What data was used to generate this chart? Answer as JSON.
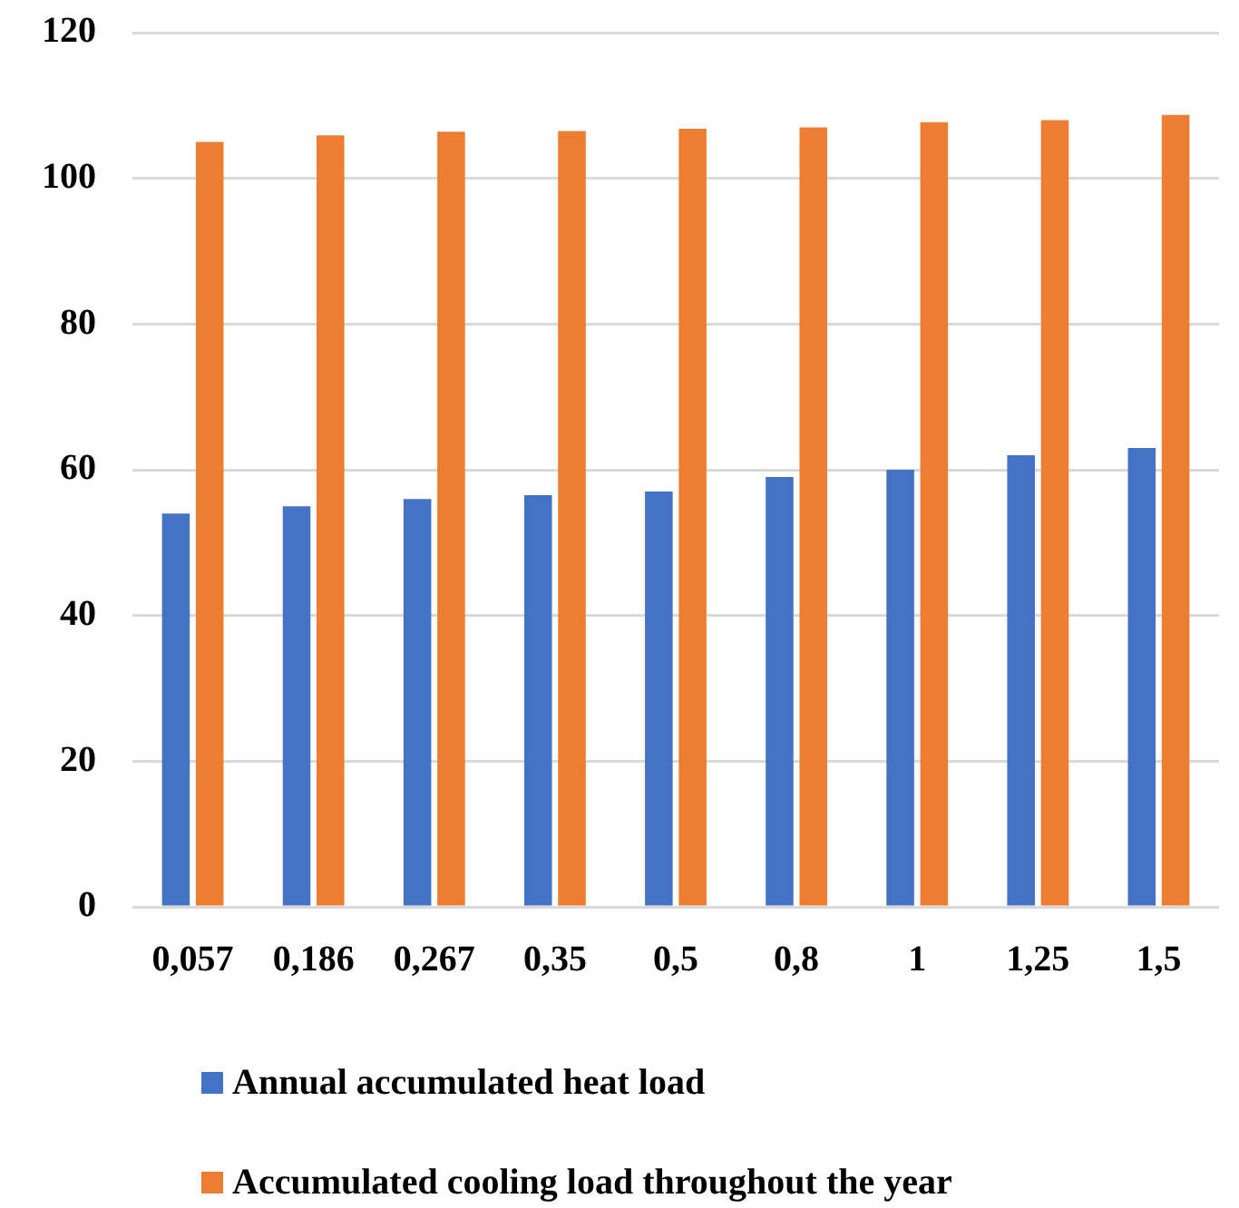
{
  "chart_data": {
    "type": "bar",
    "categories": [
      "0,057",
      "0,186",
      "0,267",
      "0,35",
      "0,5",
      "0,8",
      "1",
      "1,25",
      "1,5"
    ],
    "series": [
      {
        "name": "Annual accumulated heat load",
        "color": "#4472c4",
        "values": [
          54,
          55,
          56,
          56.5,
          57,
          59,
          60,
          62,
          63
        ]
      },
      {
        "name": "Accumulated cooling load throughout the year",
        "color": "#ed7d31",
        "values": [
          105,
          105.9,
          106.4,
          106.5,
          106.8,
          107,
          107.7,
          108,
          108.7
        ]
      }
    ],
    "ylim": [
      0,
      120
    ],
    "yticks": [
      0,
      20,
      40,
      60,
      80,
      100,
      120
    ],
    "grid": "y",
    "legend": "bottom"
  }
}
